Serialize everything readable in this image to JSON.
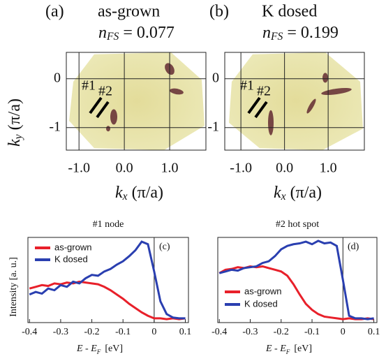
{
  "chart_data": [
    {
      "type": "image_map",
      "panel_label": "(a)",
      "title": "as-grown",
      "annotation": {
        "text": "n",
        "sub": "FS",
        "rest": "= 0.077"
      },
      "xlabel": {
        "text": "k",
        "sub": "x",
        "rest": "(π/a)"
      },
      "ylabel": {
        "text": "k",
        "sub": "y",
        "rest": "(π/a)"
      },
      "xlim": [
        -1.28,
        1.8
      ],
      "ylim": [
        -1.46,
        0.54
      ],
      "xticks": [
        {
          "value": -1,
          "label": "-1.0"
        },
        {
          "value": 0,
          "label": "0.0"
        },
        {
          "value": 1,
          "label": "1.0"
        }
      ],
      "yticks": [
        0,
        -1
      ],
      "grid": true,
      "markers": [
        "#1",
        "#2"
      ]
    },
    {
      "type": "image_map",
      "panel_label": "(b)",
      "title": "K dosed",
      "annotation": {
        "text": "n",
        "sub": "FS",
        "rest": "= 0.199"
      },
      "xlabel": {
        "text": "k",
        "sub": "x",
        "rest": "(π/a)"
      },
      "xlim": [
        -1.37,
        1.83
      ],
      "ylim": [
        -1.46,
        0.54
      ],
      "xticks": [
        {
          "value": -1,
          "label": "-1.0"
        },
        {
          "value": 0,
          "label": "0.0"
        },
        {
          "value": 1,
          "label": "1.0"
        }
      ],
      "yticks": [
        0,
        -1
      ],
      "grid": true,
      "markers": [
        "#1",
        "#2"
      ]
    },
    {
      "type": "line",
      "panel_label": "(c)",
      "title": "#1 node",
      "ylabel": "Intensity [a. u.]",
      "xlabel": {
        "text": "E - E",
        "sub": "F",
        "rest": "[eV]"
      },
      "xlim": [
        -0.405,
        0.11
      ],
      "ylim": [
        0,
        1
      ],
      "xticks": [
        -0.4,
        -0.3,
        -0.2,
        -0.1,
        0,
        0.1
      ],
      "vline": 0,
      "legend": "upper left",
      "x": [
        -0.4,
        -0.38,
        -0.36,
        -0.34,
        -0.32,
        -0.3,
        -0.28,
        -0.26,
        -0.24,
        -0.22,
        -0.2,
        -0.18,
        -0.16,
        -0.14,
        -0.12,
        -0.1,
        -0.08,
        -0.06,
        -0.04,
        -0.02,
        0,
        0.02,
        0.04,
        0.06,
        0.08,
        0.1
      ],
      "series": [
        {
          "name": "as-grown",
          "color": "#e8202a",
          "values": [
            0.4,
            0.42,
            0.44,
            0.43,
            0.46,
            0.45,
            0.47,
            0.46,
            0.48,
            0.47,
            0.46,
            0.45,
            0.42,
            0.38,
            0.33,
            0.28,
            0.22,
            0.17,
            0.12,
            0.08,
            0.05,
            0.05,
            0.04,
            0.05,
            0.04,
            0.05
          ]
        },
        {
          "name": "K dosed",
          "color": "#2a3fb0",
          "values": [
            0.33,
            0.36,
            0.34,
            0.4,
            0.38,
            0.44,
            0.42,
            0.48,
            0.46,
            0.52,
            0.56,
            0.55,
            0.6,
            0.63,
            0.68,
            0.72,
            0.78,
            0.85,
            0.95,
            0.92,
            0.6,
            0.25,
            0.1,
            0.06,
            0.05,
            0.05
          ]
        }
      ]
    },
    {
      "type": "line",
      "panel_label": "(d)",
      "title": "#2 hot spot",
      "xlabel": {
        "text": "E - E",
        "sub": "F",
        "rest": "[eV]"
      },
      "xlim": [
        -0.405,
        0.11
      ],
      "ylim": [
        0,
        1
      ],
      "xticks": [
        -0.4,
        -0.3,
        -0.2,
        -0.1,
        0,
        0.1
      ],
      "vline": 0,
      "legend": "lower left",
      "x": [
        -0.4,
        -0.38,
        -0.36,
        -0.34,
        -0.32,
        -0.3,
        -0.28,
        -0.26,
        -0.24,
        -0.22,
        -0.2,
        -0.18,
        -0.16,
        -0.14,
        -0.12,
        -0.1,
        -0.08,
        -0.06,
        -0.04,
        -0.02,
        0,
        0.02,
        0.04,
        0.06,
        0.08,
        0.1
      ],
      "series": [
        {
          "name": "as-grown",
          "color": "#e8202a",
          "values": [
            0.58,
            0.62,
            0.63,
            0.65,
            0.64,
            0.66,
            0.65,
            0.66,
            0.64,
            0.62,
            0.6,
            0.55,
            0.45,
            0.33,
            0.22,
            0.15,
            0.1,
            0.07,
            0.06,
            0.05,
            0.04,
            0.05,
            0.04,
            0.04,
            0.05,
            0.04
          ]
        },
        {
          "name": "K dosed",
          "color": "#2a3fb0",
          "values": [
            0.58,
            0.6,
            0.62,
            0.61,
            0.64,
            0.65,
            0.66,
            0.7,
            0.72,
            0.78,
            0.86,
            0.9,
            0.92,
            0.93,
            0.95,
            0.92,
            0.96,
            0.93,
            0.94,
            0.9,
            0.5,
            0.08,
            0.05,
            0.05,
            0.04,
            0.05
          ]
        }
      ]
    }
  ]
}
